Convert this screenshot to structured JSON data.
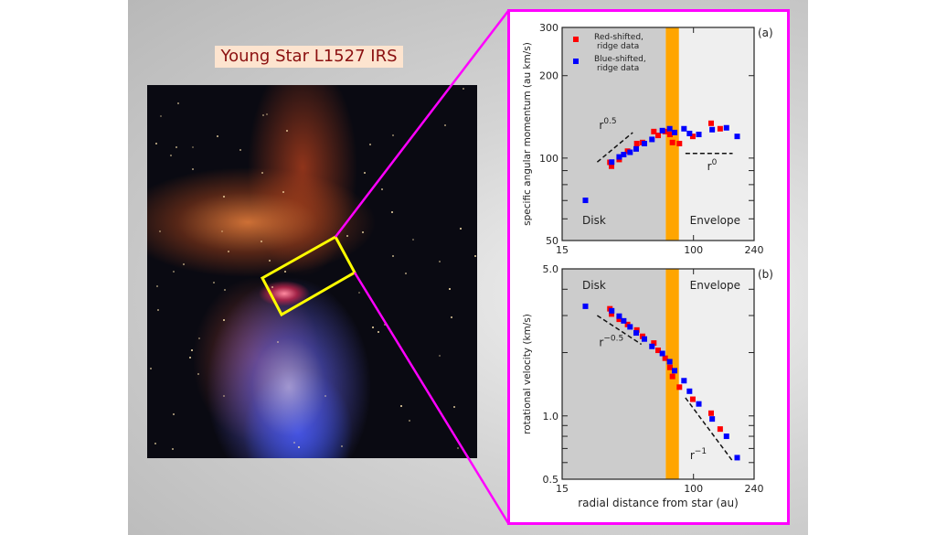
{
  "title": "Young Star L1527 IRS",
  "colors": {
    "red": "#ff0000",
    "blue": "#0000ff",
    "band": "#ffa500",
    "disk": "#cccccc",
    "envelope": "#efefef",
    "connector": "#ff00ff",
    "highlight": "#ffff00"
  },
  "chart_data": [
    {
      "type": "scatter",
      "panel_label": "(a)",
      "ylabel": "specific angular momentum (au km/s)",
      "xlabel": "",
      "xscale": "log",
      "yscale": "log",
      "xlim": [
        15,
        240
      ],
      "ylim": [
        50,
        300
      ],
      "xticks": [
        "15",
        "100",
        "240"
      ],
      "yticks": [
        "50",
        "100",
        "200",
        "300"
      ],
      "regions": {
        "disk_label": "Disk",
        "envelope_label": "Envelope",
        "transition_band": [
          67,
          81
        ]
      },
      "legend": {
        "position": "top-left",
        "entries": [
          "Red-shifted,\nridge data",
          "Blue-shifted,\nridge data"
        ],
        "line1": [
          "Red-shifted,",
          "Blue-shifted,"
        ],
        "line2": [
          "ridge data",
          "ridge data"
        ]
      },
      "series": [
        {
          "name": "Red-shifted, ridge data",
          "x": [
            29.9,
            30.6,
            34.2,
            38.6,
            44.1,
            47.9,
            56.4,
            60,
            66.4,
            71.2,
            73.8,
            81.6,
            99,
            129,
            147
          ],
          "y": [
            96.5,
            93.4,
            98.8,
            106,
            113,
            114,
            125,
            121,
            125,
            122,
            114,
            113,
            120,
            134,
            128
          ]
        },
        {
          "name": "Blue-shifted, ridge data",
          "x": [
            21,
            30.7,
            34.2,
            36.5,
            40,
            43.7,
            49.2,
            54.9,
            63.8,
            70.9,
            76.1,
            87.2,
            94.4,
            108,
            131,
            161,
            188
          ],
          "y": [
            70.1,
            96.7,
            101,
            103,
            105,
            108,
            113,
            117,
            126,
            128,
            124,
            128,
            123,
            122,
            127,
            129,
            120
          ]
        }
      ],
      "guides": [
        {
          "label": "r",
          "exp": "0.5",
          "x": [
            24.9,
            41.6
          ],
          "y": [
            96.7,
            124
          ]
        },
        {
          "label": "r",
          "exp": "0",
          "x": [
            89,
            176
          ],
          "y": [
            104,
            104
          ]
        }
      ]
    },
    {
      "type": "scatter",
      "panel_label": "(b)",
      "ylabel": "rotational velocity (km/s)",
      "xlabel": "radial distance from star (au)",
      "xscale": "log",
      "yscale": "log",
      "xlim": [
        15,
        240
      ],
      "ylim": [
        0.5,
        5.0
      ],
      "xticks": [
        "15",
        "100",
        "240"
      ],
      "yticks": [
        "0.5",
        "1.0",
        "5.0"
      ],
      "regions": {
        "disk_label": "Disk",
        "envelope_label": "Envelope",
        "transition_band": [
          67,
          81
        ]
      },
      "series": [
        {
          "name": "Red-shifted, ridge data",
          "x": [
            29.9,
            30.6,
            34.2,
            38.6,
            44.1,
            47.9,
            56.4,
            60,
            66.4,
            71.2,
            73.8,
            81.6,
            99,
            129,
            147
          ],
          "y": [
            3.23,
            3.05,
            2.88,
            2.72,
            2.56,
            2.39,
            2.22,
            2.05,
            1.88,
            1.7,
            1.54,
            1.37,
            1.2,
            1.03,
            0.866
          ]
        },
        {
          "name": "Blue-shifted, ridge data",
          "x": [
            21,
            30.7,
            34.2,
            36.5,
            40,
            43.7,
            49.2,
            54.9,
            63.8,
            70.9,
            76.1,
            87.2,
            94.4,
            108,
            131,
            161,
            188
          ],
          "y": [
            3.32,
            3.16,
            2.98,
            2.83,
            2.65,
            2.48,
            2.32,
            2.14,
            1.98,
            1.81,
            1.64,
            1.47,
            1.31,
            1.14,
            0.967,
            0.8,
            0.633
          ]
        }
      ],
      "guides": [
        {
          "label": "r",
          "exp": "−0.5",
          "x": [
            24.9,
            47.1
          ],
          "y": [
            3.0,
            2.19
          ]
        },
        {
          "label": "r",
          "exp": "−1",
          "x": [
            89,
            176
          ],
          "y": [
            1.22,
            0.61
          ]
        }
      ]
    }
  ]
}
